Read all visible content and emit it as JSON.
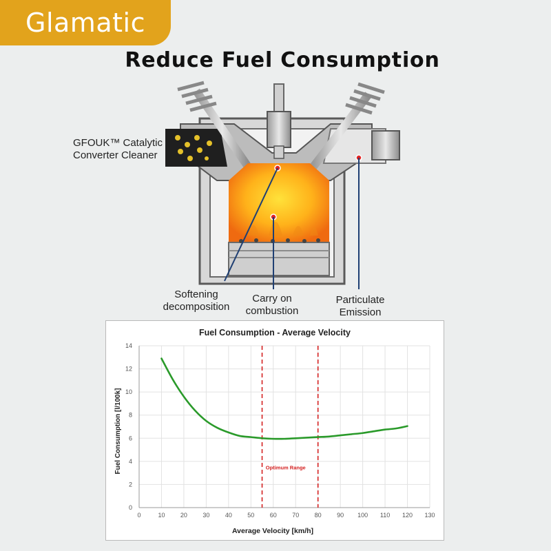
{
  "brand": {
    "name": "Glamatic"
  },
  "headline": "Reduce Fuel Consumption",
  "diagram": {
    "labels": {
      "cleaner": [
        "GFOUK™ Catalytic",
        "Converter Cleaner"
      ],
      "softening": [
        "Softening",
        "decomposition"
      ],
      "combustion": [
        "Carry on",
        "combustion"
      ],
      "particulate": [
        "Particulate",
        "Emission"
      ]
    }
  },
  "colors": {
    "brand": "#e2a31c",
    "curve": "#2a9a2a",
    "optimum": "#d42020",
    "flame_core": "#ffd21a",
    "flame_edge": "#f07a10"
  },
  "chart_data": {
    "type": "line",
    "title": "Fuel Consumption - Average Velocity",
    "xlabel": "Average Velocity [km/h]",
    "ylabel": "Fuel Consumption [l/100k]",
    "xlim": [
      0,
      130
    ],
    "ylim": [
      0,
      14
    ],
    "xticks": [
      0,
      10,
      20,
      30,
      40,
      50,
      60,
      70,
      80,
      90,
      100,
      110,
      120,
      130
    ],
    "yticks": [
      0,
      2,
      4,
      6,
      8,
      10,
      12,
      14
    ],
    "grid": true,
    "series": [
      {
        "x": [
          10,
          15,
          20,
          25,
          30,
          35,
          40,
          45,
          50,
          55,
          60,
          65,
          70,
          75,
          80,
          85,
          90,
          95,
          100,
          105,
          110,
          115,
          120
        ],
        "y": [
          12.9,
          11.1,
          9.6,
          8.4,
          7.5,
          6.9,
          6.5,
          6.2,
          6.1,
          6.0,
          5.95,
          5.95,
          6.0,
          6.05,
          6.1,
          6.15,
          6.25,
          6.35,
          6.45,
          6.6,
          6.75,
          6.85,
          7.05
        ]
      }
    ],
    "reference_lines": {
      "x": [
        55,
        80
      ]
    },
    "annotations": [
      {
        "text": "Optimum Range",
        "x": 56,
        "y": 3.3
      }
    ]
  }
}
